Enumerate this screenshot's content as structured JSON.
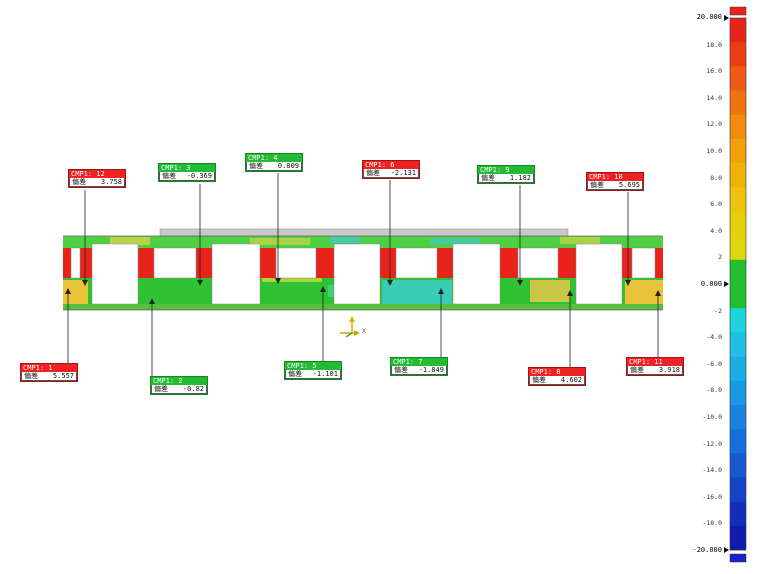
{
  "callouts": [
    {
      "id": "CMP1: 12",
      "label": "偏差",
      "value": "3.758",
      "color": "red"
    },
    {
      "id": "CMP1: 3",
      "label": "偏差",
      "value": "-0.369",
      "color": "green"
    },
    {
      "id": "CMP1: 4",
      "label": "偏差",
      "value": "0.009",
      "color": "green"
    },
    {
      "id": "CMP1: 6",
      "label": "偏差",
      "value": "-2.131",
      "color": "red"
    },
    {
      "id": "CMP1: 9",
      "label": "偏差",
      "value": "1.182",
      "color": "green"
    },
    {
      "id": "CMP1: 10",
      "label": "偏差",
      "value": "5.695",
      "color": "red"
    },
    {
      "id": "CMP1: 1",
      "label": "偏差",
      "value": "5.557",
      "color": "red"
    },
    {
      "id": "CMP1: 2",
      "label": "偏差",
      "value": "-0.82",
      "color": "green"
    },
    {
      "id": "CMP1: 5",
      "label": "偏差",
      "value": "-1.101",
      "color": "green"
    },
    {
      "id": "CMP1: 7",
      "label": "偏差",
      "value": "-1.849",
      "color": "green"
    },
    {
      "id": "CMP1: 8",
      "label": "偏差",
      "value": "4.602",
      "color": "red"
    },
    {
      "id": "CMP1: 11",
      "label": "偏差",
      "value": "3.918",
      "color": "red"
    }
  ],
  "scale": {
    "max_label": "20.000",
    "min_label": "-20.000",
    "zero_label": "0.000",
    "ticks": [
      "18.0",
      "16.0",
      "14.0",
      "12.0",
      "10.0",
      "8.0",
      "6.0",
      "4.0",
      "2",
      "-2",
      "-4.0",
      "-6.0",
      "-8.0",
      "-10.0",
      "-12.0",
      "-14.0",
      "-16.0",
      "-18.0"
    ],
    "colors": [
      "#e8231c",
      "#ea3d17",
      "#ec5a14",
      "#ee7410",
      "#ef8c0e",
      "#f0a10c",
      "#efb20b",
      "#eec30b",
      "#e6d20c",
      "#ddd80e",
      "#22c02e",
      "#22c02e",
      "#1fd3de",
      "#1ec1e4",
      "#1cade6",
      "#1a98e4",
      "#1884e0",
      "#176fda",
      "#1559d2",
      "#1443c8",
      "#132ebc",
      "#121ab0"
    ],
    "over_color": "#e8231c",
    "under_color": "#1422cc"
  },
  "axis_label": "X"
}
